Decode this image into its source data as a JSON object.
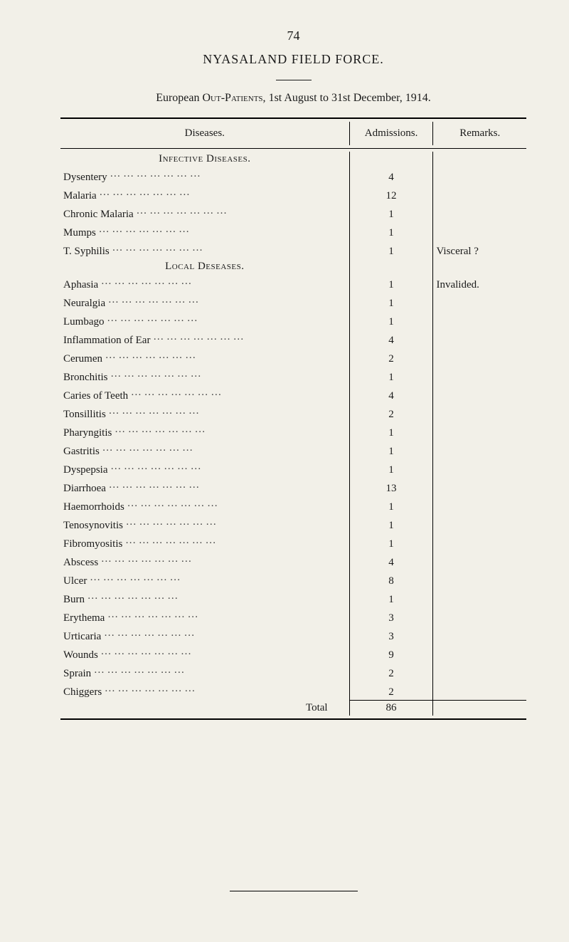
{
  "page_number": "74",
  "doc_title": "NYASALAND FIELD FORCE.",
  "subtitle_prefix": "European ",
  "subtitle_sc": "Out-Patients,",
  "subtitle_rest": " 1st August to 31st December, 1914.",
  "headers": {
    "diseases": "Diseases.",
    "admissions": "Admissions.",
    "remarks": "Remarks."
  },
  "sections": [
    {
      "title": "Infective Diseases.",
      "rows": [
        {
          "name": "Dysentery",
          "adm": "4",
          "rem": ""
        },
        {
          "name": "Malaria",
          "adm": "12",
          "rem": ""
        },
        {
          "name": "Chronic Malaria",
          "adm": "1",
          "rem": ""
        },
        {
          "name": "Mumps",
          "adm": "1",
          "rem": ""
        },
        {
          "name": "T. Syphilis",
          "adm": "1",
          "rem": "Visceral ?"
        }
      ]
    },
    {
      "title": "Local Deseases.",
      "rows": [
        {
          "name": "Aphasia",
          "adm": "1",
          "rem": "Invalided."
        },
        {
          "name": "Neuralgia",
          "adm": "1",
          "rem": ""
        },
        {
          "name": "Lumbago",
          "adm": "1",
          "rem": ""
        },
        {
          "name": "Inflammation of Ear",
          "adm": "4",
          "rem": ""
        },
        {
          "name": "Cerumen",
          "adm": "2",
          "rem": ""
        },
        {
          "name": "Bronchitis",
          "adm": "1",
          "rem": ""
        },
        {
          "name": "Caries of Teeth",
          "adm": "4",
          "rem": ""
        },
        {
          "name": "Tonsillitis",
          "adm": "2",
          "rem": ""
        },
        {
          "name": "Pharyngitis",
          "adm": "1",
          "rem": ""
        },
        {
          "name": "Gastritis",
          "adm": "1",
          "rem": ""
        },
        {
          "name": "Dyspepsia",
          "adm": "1",
          "rem": ""
        },
        {
          "name": "Diarrhoea",
          "adm": "13",
          "rem": ""
        },
        {
          "name": "Haemorrhoids",
          "adm": "1",
          "rem": ""
        },
        {
          "name": "Tenosynovitis",
          "adm": "1",
          "rem": ""
        },
        {
          "name": "Fibromyositis",
          "adm": "1",
          "rem": ""
        },
        {
          "name": "Abscess",
          "adm": "4",
          "rem": ""
        },
        {
          "name": "Ulcer",
          "adm": "8",
          "rem": ""
        },
        {
          "name": "Burn",
          "adm": "1",
          "rem": ""
        },
        {
          "name": "Erythema",
          "adm": "3",
          "rem": ""
        },
        {
          "name": "Urticaria",
          "adm": "3",
          "rem": ""
        },
        {
          "name": "Wounds",
          "adm": "9",
          "rem": ""
        },
        {
          "name": "Sprain",
          "adm": "2",
          "rem": ""
        },
        {
          "name": "Chiggers",
          "adm": "2",
          "rem": ""
        }
      ]
    }
  ],
  "total_label": "Total",
  "total_value": "86",
  "leader_pattern": "…   …   …   …   …   …   …"
}
